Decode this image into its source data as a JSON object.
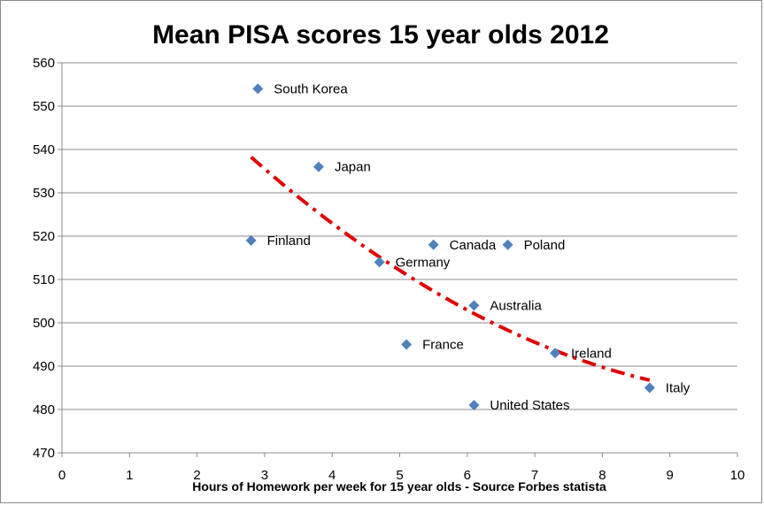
{
  "chart_data": {
    "type": "scatter",
    "title": "Mean PISA scores 15 year olds 2012",
    "xlabel": "Hours of Homework per week for 15 year olds - Source Forbes statista",
    "ylabel": "",
    "xlim": [
      0,
      10
    ],
    "ylim": [
      470,
      560
    ],
    "xticks": [
      0,
      1,
      2,
      3,
      4,
      5,
      6,
      7,
      8,
      9,
      10
    ],
    "yticks": [
      470,
      480,
      490,
      500,
      510,
      520,
      530,
      540,
      550,
      560
    ],
    "grid": "horizontal",
    "marker_color": "#4f81bd",
    "trendline": {
      "type": "polynomial",
      "color": "#e00000",
      "style": "dash-dot",
      "x_start": 2.8,
      "x_end": 8.7
    },
    "points": [
      {
        "label": "South Korea",
        "x": 2.9,
        "y": 554
      },
      {
        "label": "Japan",
        "x": 3.8,
        "y": 536
      },
      {
        "label": "Finland",
        "x": 2.8,
        "y": 519
      },
      {
        "label": "Canada",
        "x": 5.5,
        "y": 518
      },
      {
        "label": "Poland",
        "x": 6.6,
        "y": 518
      },
      {
        "label": "Germany",
        "x": 4.7,
        "y": 514
      },
      {
        "label": "Australia",
        "x": 6.1,
        "y": 504
      },
      {
        "label": "France",
        "x": 5.1,
        "y": 495
      },
      {
        "label": "Ireland",
        "x": 7.3,
        "y": 493
      },
      {
        "label": "Italy",
        "x": 8.7,
        "y": 485
      },
      {
        "label": "United States",
        "x": 6.1,
        "y": 481
      }
    ]
  }
}
